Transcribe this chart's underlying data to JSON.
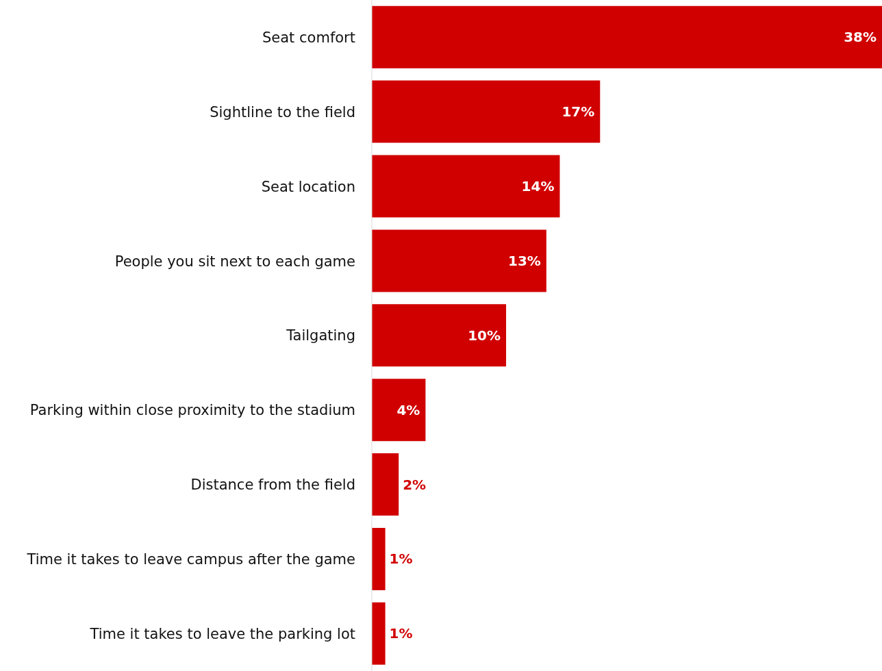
{
  "chart_data": {
    "type": "bar",
    "orientation": "horizontal",
    "categories": [
      "Seat comfort",
      "Sightline to the field",
      "Seat location",
      "People you sit next to each game",
      "Tailgating",
      "Parking within close proximity to the stadium",
      "Distance from the field",
      "Time it takes to leave campus after the game",
      "Time it takes to leave the parking lot"
    ],
    "values": [
      38,
      17,
      14,
      13,
      10,
      4,
      2,
      1,
      1
    ],
    "value_labels": [
      "38%",
      "17%",
      "14%",
      "13%",
      "10%",
      "4%",
      "2%",
      "1%",
      "1%"
    ],
    "color": "#d00000"
  }
}
